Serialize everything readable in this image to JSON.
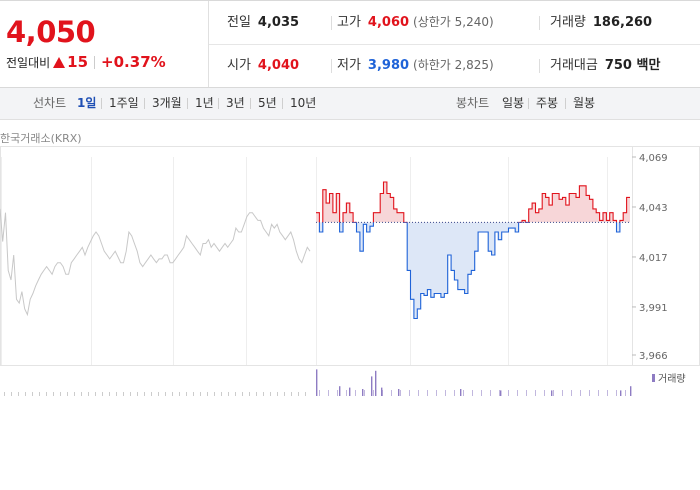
{
  "quote": {
    "current_price": "4,050",
    "change_label": "전일대비",
    "change_value": "15",
    "change_pct": "+0.37%"
  },
  "info": {
    "prev_close": {
      "label": "전일",
      "value": "4,035"
    },
    "high": {
      "label": "고가",
      "value": "4,060",
      "sub": "(상한가 5,240)"
    },
    "volume": {
      "label": "거래량",
      "value": "186,260"
    },
    "open": {
      "label": "시가",
      "value": "4,040"
    },
    "low": {
      "label": "저가",
      "value": "3,980",
      "sub": "(하한가 2,825)"
    },
    "amount": {
      "label": "거래대금",
      "value": "750 백만"
    }
  },
  "tabs": {
    "line_head": "선차트",
    "line_tabs": [
      "1일",
      "1주일",
      "3개월",
      "1년",
      "3년",
      "5년",
      "10년"
    ],
    "candle_head": "봉차트",
    "candle_tabs": [
      "일봉",
      "주봉",
      "월봉"
    ]
  },
  "chart_source": "한국거래소(KRX)",
  "chart_data": {
    "type": "line",
    "y_ticks": [
      "4,069",
      "4,043",
      "4,017",
      "3,991",
      "3,966"
    ],
    "ylim": [
      3966,
      4069
    ],
    "baseline": 4035,
    "volume_label": "거래량",
    "colors": {
      "up": "#e1131c",
      "down": "#1f63d8",
      "prev": "#c8c8c8",
      "volume": "#8e7cc3"
    },
    "prev_day_series": [
      4042,
      4025,
      4040,
      4010,
      4005,
      4018,
      3995,
      3993,
      3999,
      3990,
      3987,
      3995,
      3998,
      4002,
      4005,
      4008,
      4010,
      4012,
      4010,
      4008,
      4012,
      4014,
      4014,
      4012,
      4008,
      4008,
      4014,
      4016,
      4018,
      4020,
      4022,
      4018,
      4022,
      4025,
      4028,
      4030,
      4028,
      4024,
      4020,
      4018,
      4016,
      4018,
      4020,
      4017,
      4014,
      4014,
      4020,
      4030,
      4028,
      4024,
      4020,
      4014,
      4012,
      4014,
      4016,
      4018,
      4016,
      4014,
      4016,
      4016,
      4018,
      4018,
      4014,
      4014,
      4016,
      4018,
      4020,
      4022,
      4028,
      4026,
      4024,
      4022,
      4020,
      4018,
      4024,
      4024,
      4026,
      4022,
      4024,
      4022,
      4020,
      4022,
      4024,
      4022,
      4024,
      4026,
      4032,
      4030,
      4030,
      4034,
      4038,
      4040,
      4040,
      4038,
      4036,
      4036,
      4032,
      4030,
      4028,
      4034,
      4032,
      4034,
      4030,
      4028,
      4026,
      4028,
      4030,
      4026,
      4020,
      4016,
      4014,
      4018,
      4022,
      4020
    ],
    "today_series": [
      4040,
      4030,
      4052,
      4045,
      4050,
      4040,
      4050,
      4030,
      4040,
      4045,
      4040,
      4035,
      4030,
      4020,
      4034,
      4030,
      4033,
      4040,
      4040,
      4050,
      4056,
      4050,
      4048,
      4042,
      4040,
      4040,
      4035,
      4010,
      3995,
      3985,
      3990,
      3998,
      3997,
      4000,
      3996,
      3998,
      3998,
      3996,
      3998,
      4018,
      4010,
      4005,
      4000,
      4000,
      3998,
      4008,
      4010,
      4020,
      4030,
      4030,
      4030,
      4020,
      4018,
      4030,
      4026,
      4030,
      4030,
      4032,
      4032,
      4030,
      4035,
      4036,
      4035,
      4042,
      4045,
      4040,
      4042,
      4050,
      4048,
      4044,
      4050,
      4050,
      4047,
      4048,
      4044,
      4050,
      4050,
      4048,
      4054,
      4054,
      4049,
      4047,
      4042,
      4040,
      4036,
      4040,
      4036,
      4040,
      4036,
      4030,
      4036,
      4040,
      4048,
      4048
    ],
    "volume_marks": [
      [
        316,
        0.95
      ],
      [
        339,
        0.35
      ],
      [
        349,
        0.3
      ],
      [
        362,
        0.25
      ],
      [
        371,
        0.7
      ],
      [
        375,
        0.9
      ],
      [
        381,
        0.3
      ],
      [
        398,
        0.25
      ],
      [
        460,
        0.25
      ],
      [
        500,
        0.2
      ],
      [
        551,
        0.2
      ],
      [
        620,
        0.2
      ],
      [
        630,
        0.35
      ]
    ]
  }
}
